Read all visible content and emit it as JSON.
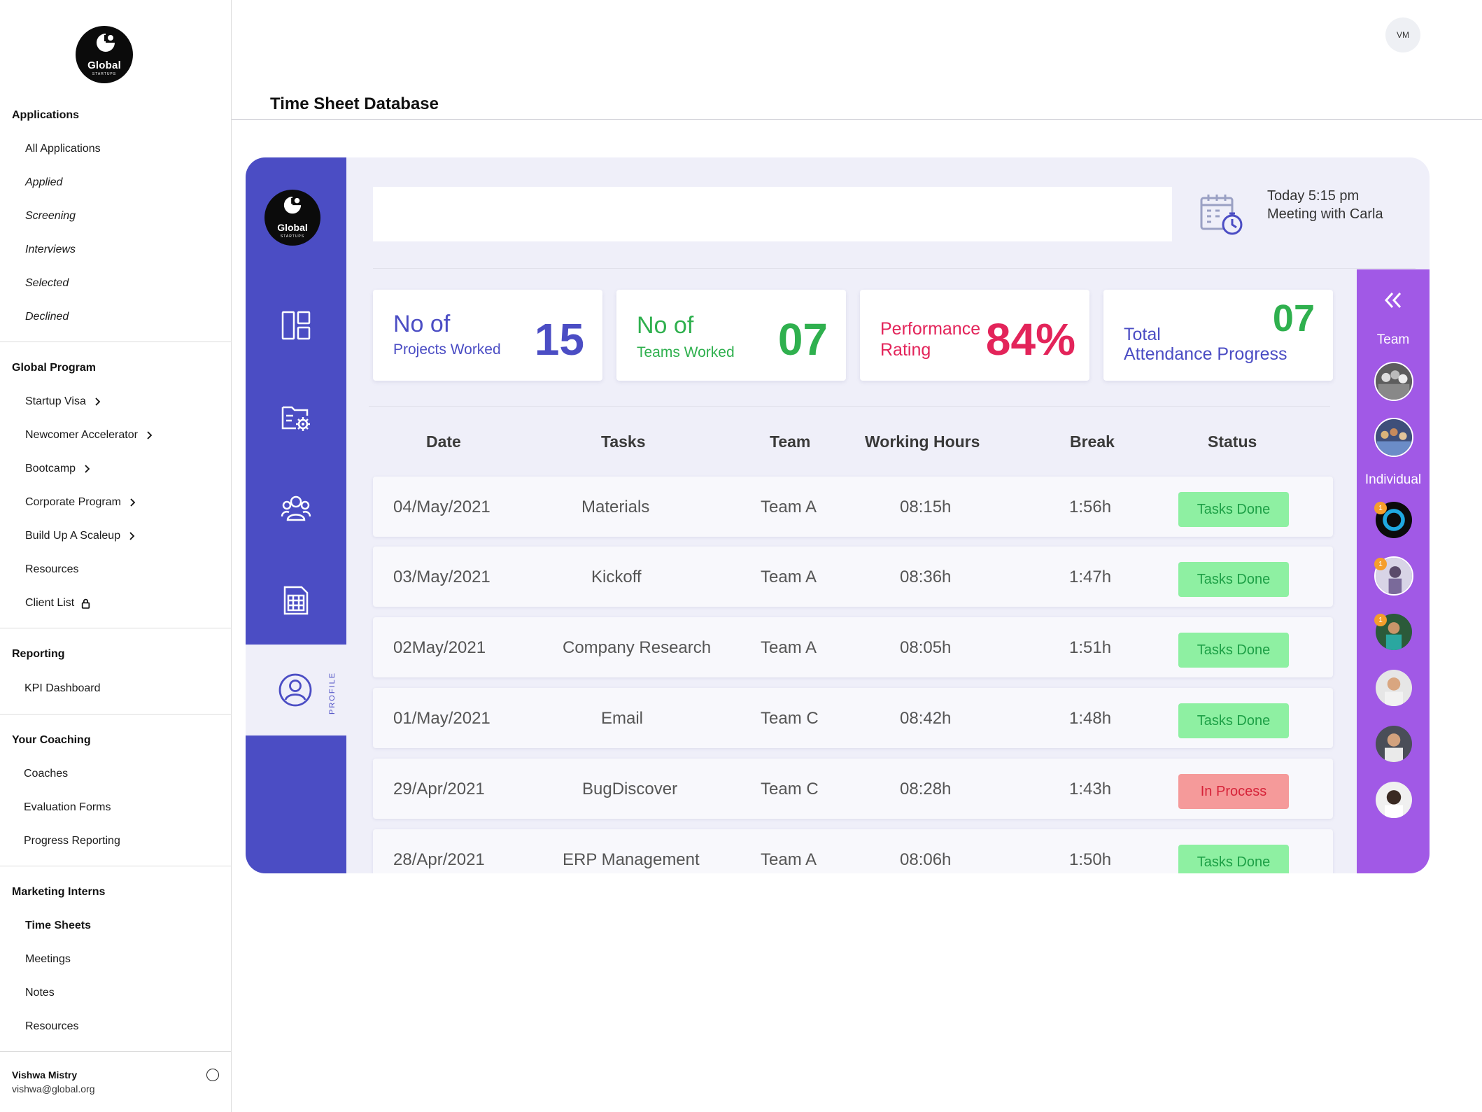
{
  "brand": {
    "name": "Global",
    "tagline": "STARTUPS"
  },
  "sidebar": {
    "sections": [
      {
        "title": "Applications",
        "items": [
          "All Applications",
          "Applied",
          "Screening",
          "Interviews",
          "Selected",
          "Declined"
        ]
      },
      {
        "title": "Global Program",
        "items": [
          "Startup Visa",
          "Newcomer Accelerator",
          "Bootcamp",
          "Corporate Program",
          "Build Up A Scaleup",
          "Resources",
          "Client List"
        ]
      },
      {
        "title": "Reporting",
        "items": [
          "KPI Dashboard"
        ]
      },
      {
        "title": "Your Coaching",
        "items": [
          "Coaches",
          "Evaluation Forms",
          "Progress Reporting"
        ]
      },
      {
        "title": "Marketing Interns",
        "items": [
          "Time Sheets",
          "Meetings",
          "Notes",
          "Resources"
        ]
      }
    ],
    "user": {
      "name": "Vishwa Mistry",
      "email": "vishwa@global.org"
    }
  },
  "header": {
    "avatar_initials": "VM",
    "page_title": "Time Sheet Database"
  },
  "dashboard": {
    "rail": {
      "profile_label": "PROFILE"
    },
    "search": {
      "placeholder": ""
    },
    "meeting": {
      "time": "Today 5:15 pm",
      "title": "Meeting with Carla"
    },
    "stats": [
      {
        "line1": "No of",
        "line2": "Projects Worked",
        "value": "15",
        "color": "#4b4dc4"
      },
      {
        "line1": "No of",
        "line2": "Teams Worked",
        "value": "07",
        "color": "#2fb04e"
      },
      {
        "line1": "Performance",
        "line2": "Rating",
        "value": "84%",
        "color": "#e3245a"
      },
      {
        "line1": "Total",
        "line2": "Attendance Progress",
        "value": "07",
        "color": "#2fb04e",
        "line_color": "#4b4dc4"
      }
    ],
    "table": {
      "headers": [
        "Date",
        "Tasks",
        "Team",
        "Working Hours",
        "Break",
        "Status"
      ],
      "rows": [
        {
          "date": "04/May/2021",
          "task": "Materials",
          "team": "Team A",
          "hours": "08:15h",
          "break": "1:56h",
          "status": "Tasks Done",
          "state": "done"
        },
        {
          "date": "03/May/2021",
          "task": "Kickoff",
          "team": "Team A",
          "hours": "08:36h",
          "break": "1:47h",
          "status": "Tasks Done",
          "state": "done"
        },
        {
          "date": "02May/2021",
          "task": "Company Research",
          "team": "Team A",
          "hours": "08:05h",
          "break": "1:51h",
          "status": "Tasks Done",
          "state": "done"
        },
        {
          "date": "01/May/2021",
          "task": "Email",
          "team": "Team C",
          "hours": "08:42h",
          "break": "1:48h",
          "status": "Tasks Done",
          "state": "done"
        },
        {
          "date": "29/Apr/2021",
          "task": "BugDiscover",
          "team": "Team C",
          "hours": "08:28h",
          "break": "1:43h",
          "status": "In Process",
          "state": "process"
        },
        {
          "date": "28/Apr/2021",
          "task": "ERP Management",
          "team": "Team A",
          "hours": "08:06h",
          "break": "1:50h",
          "status": "Tasks Done",
          "state": "done"
        }
      ]
    },
    "team_panel": {
      "team_label": "Team",
      "individual_label": "Individual",
      "notification_count": "1",
      "colors": {
        "accent": "#a159e6",
        "primary": "#4b4dc4"
      }
    }
  }
}
